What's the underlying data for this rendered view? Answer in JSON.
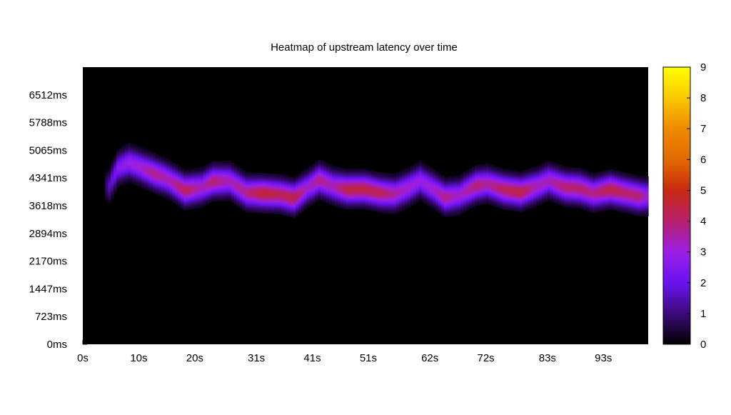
{
  "chart_data": {
    "type": "heatmap",
    "title": "Heatmap of upstream latency over time",
    "xlabel": "",
    "ylabel": "",
    "x_range_s": [
      0,
      101
    ],
    "y_range_ms": [
      0,
      7236
    ],
    "x_ticks": [
      {
        "label": "0s",
        "value": 0
      },
      {
        "label": "10s",
        "value": 10
      },
      {
        "label": "20s",
        "value": 20
      },
      {
        "label": "31s",
        "value": 31
      },
      {
        "label": "41s",
        "value": 41
      },
      {
        "label": "51s",
        "value": 51
      },
      {
        "label": "62s",
        "value": 62
      },
      {
        "label": "72s",
        "value": 72
      },
      {
        "label": "83s",
        "value": 83
      },
      {
        "label": "93s",
        "value": 93
      }
    ],
    "y_ticks": [
      {
        "label": "0ms",
        "value": 0
      },
      {
        "label": "723ms",
        "value": 723
      },
      {
        "label": "1447ms",
        "value": 1447
      },
      {
        "label": "2170ms",
        "value": 2170
      },
      {
        "label": "2894ms",
        "value": 2894
      },
      {
        "label": "3618ms",
        "value": 3618
      },
      {
        "label": "4341ms",
        "value": 4341
      },
      {
        "label": "5065ms",
        "value": 5065
      },
      {
        "label": "5788ms",
        "value": 5788
      },
      {
        "label": "6512ms",
        "value": 6512
      }
    ],
    "colorbar": {
      "min": 0,
      "max": 9,
      "ticks": [
        {
          "label": "0",
          "value": 0
        },
        {
          "label": "1",
          "value": 1
        },
        {
          "label": "2",
          "value": 2
        },
        {
          "label": "3",
          "value": 3
        },
        {
          "label": "4",
          "value": 4
        },
        {
          "label": "5",
          "value": 5
        },
        {
          "label": "6",
          "value": 6
        },
        {
          "label": "7",
          "value": 7
        },
        {
          "label": "8",
          "value": 8
        },
        {
          "label": "9",
          "value": 9
        }
      ],
      "stops": [
        {
          "value": 0,
          "color": "#000000"
        },
        {
          "value": 1,
          "color": "#3b0a7a"
        },
        {
          "value": 2,
          "color": "#6a12f0"
        },
        {
          "value": 3,
          "color": "#9a1fe6"
        },
        {
          "value": 4,
          "color": "#b8206e"
        },
        {
          "value": 5,
          "color": "#c82a10"
        },
        {
          "value": 6,
          "color": "#e26a00"
        },
        {
          "value": 7,
          "color": "#f08a00"
        },
        {
          "value": 8,
          "color": "#fbc800"
        },
        {
          "value": 9,
          "color": "#ffff00"
        }
      ]
    },
    "background_color": "#000000",
    "band": [
      {
        "x": 4.5,
        "center_ms": 4140,
        "peak": 1.6
      },
      {
        "x": 6,
        "center_ms": 4600,
        "peak": 2.5
      },
      {
        "x": 8,
        "center_ms": 4750,
        "peak": 3.0
      },
      {
        "x": 10,
        "center_ms": 4640,
        "peak": 3.2
      },
      {
        "x": 12.5,
        "center_ms": 4470,
        "peak": 3.8
      },
      {
        "x": 15,
        "center_ms": 4320,
        "peak": 3.4
      },
      {
        "x": 18,
        "center_ms": 4030,
        "peak": 4.2
      },
      {
        "x": 21,
        "center_ms": 4100,
        "peak": 3.4
      },
      {
        "x": 23,
        "center_ms": 4260,
        "peak": 4.0
      },
      {
        "x": 26,
        "center_ms": 4270,
        "peak": 3.4
      },
      {
        "x": 29,
        "center_ms": 3970,
        "peak": 3.8
      },
      {
        "x": 32,
        "center_ms": 3950,
        "peak": 4.6
      },
      {
        "x": 35,
        "center_ms": 3920,
        "peak": 4.2
      },
      {
        "x": 37.5,
        "center_ms": 3830,
        "peak": 4.4
      },
      {
        "x": 40,
        "center_ms": 4100,
        "peak": 3.2
      },
      {
        "x": 42,
        "center_ms": 4300,
        "peak": 3.8
      },
      {
        "x": 44.5,
        "center_ms": 4140,
        "peak": 3.4
      },
      {
        "x": 47,
        "center_ms": 4050,
        "peak": 4.4
      },
      {
        "x": 50,
        "center_ms": 4060,
        "peak": 4.4
      },
      {
        "x": 53,
        "center_ms": 3960,
        "peak": 4.2
      },
      {
        "x": 55.5,
        "center_ms": 3930,
        "peak": 3.6
      },
      {
        "x": 58,
        "center_ms": 4100,
        "peak": 3.2
      },
      {
        "x": 60,
        "center_ms": 4280,
        "peak": 3.0
      },
      {
        "x": 62.5,
        "center_ms": 4050,
        "peak": 3.2
      },
      {
        "x": 64.5,
        "center_ms": 3840,
        "peak": 3.8
      },
      {
        "x": 67,
        "center_ms": 3900,
        "peak": 3.2
      },
      {
        "x": 70,
        "center_ms": 4150,
        "peak": 4.0
      },
      {
        "x": 72,
        "center_ms": 4200,
        "peak": 3.6
      },
      {
        "x": 75,
        "center_ms": 4050,
        "peak": 4.2
      },
      {
        "x": 78,
        "center_ms": 3980,
        "peak": 4.4
      },
      {
        "x": 81,
        "center_ms": 4140,
        "peak": 3.4
      },
      {
        "x": 83,
        "center_ms": 4280,
        "peak": 3.4
      },
      {
        "x": 86,
        "center_ms": 4110,
        "peak": 4.0
      },
      {
        "x": 88.5,
        "center_ms": 4080,
        "peak": 4.0
      },
      {
        "x": 91,
        "center_ms": 3950,
        "peak": 3.8
      },
      {
        "x": 94,
        "center_ms": 4050,
        "peak": 4.4
      },
      {
        "x": 97,
        "center_ms": 3950,
        "peak": 4.0
      },
      {
        "x": 99,
        "center_ms": 3880,
        "peak": 4.0
      },
      {
        "x": 100.5,
        "center_ms": 3870,
        "peak": 3.2
      }
    ]
  }
}
